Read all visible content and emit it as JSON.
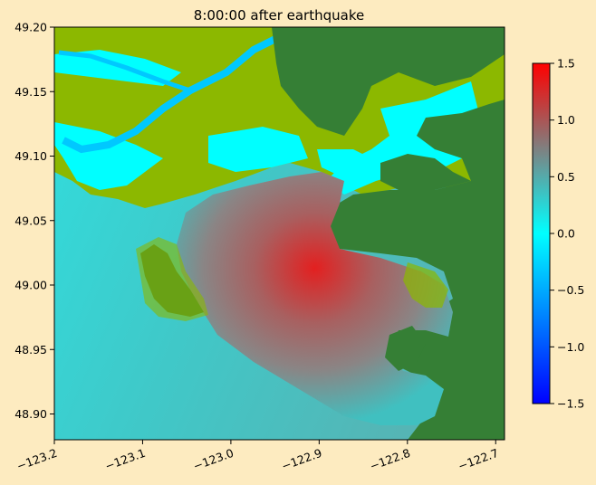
{
  "chart_data": {
    "type": "heatmap",
    "title": "8:00:00 after earthquake",
    "xlabel": "",
    "ylabel": "",
    "xlim": [
      -123.2,
      -122.69
    ],
    "ylim": [
      48.88,
      49.2
    ],
    "x_ticks": [
      -123.2,
      -123.1,
      -123.0,
      -122.9,
      -122.8,
      -122.7
    ],
    "x_tick_labels": [
      "−123.2",
      "−123.1",
      "−123.0",
      "−122.9",
      "−122.8",
      "−122.7"
    ],
    "y_ticks": [
      48.9,
      48.95,
      49.0,
      49.05,
      49.1,
      49.15,
      49.2
    ],
    "y_tick_labels": [
      "48.90",
      "48.95",
      "49.00",
      "49.05",
      "49.10",
      "49.15",
      "49.20"
    ],
    "colorbar": {
      "range": [
        -1.5,
        1.5
      ],
      "ticks": [
        -1.5,
        -1.0,
        -0.5,
        0.0,
        0.5,
        1.0,
        1.5
      ],
      "tick_labels": [
        "−1.5",
        "−1.0",
        "−0.5",
        "0.0",
        "0.5",
        "1.0",
        "1.5"
      ],
      "colormap": [
        "#0000ff",
        "#00ffff",
        "#ff0000"
      ]
    },
    "grid": false,
    "colors": {
      "land_low": "#8cb800",
      "land_high": "#357f35",
      "dry_land_cyan": "#00ffff",
      "background": "#fdebc0"
    }
  }
}
